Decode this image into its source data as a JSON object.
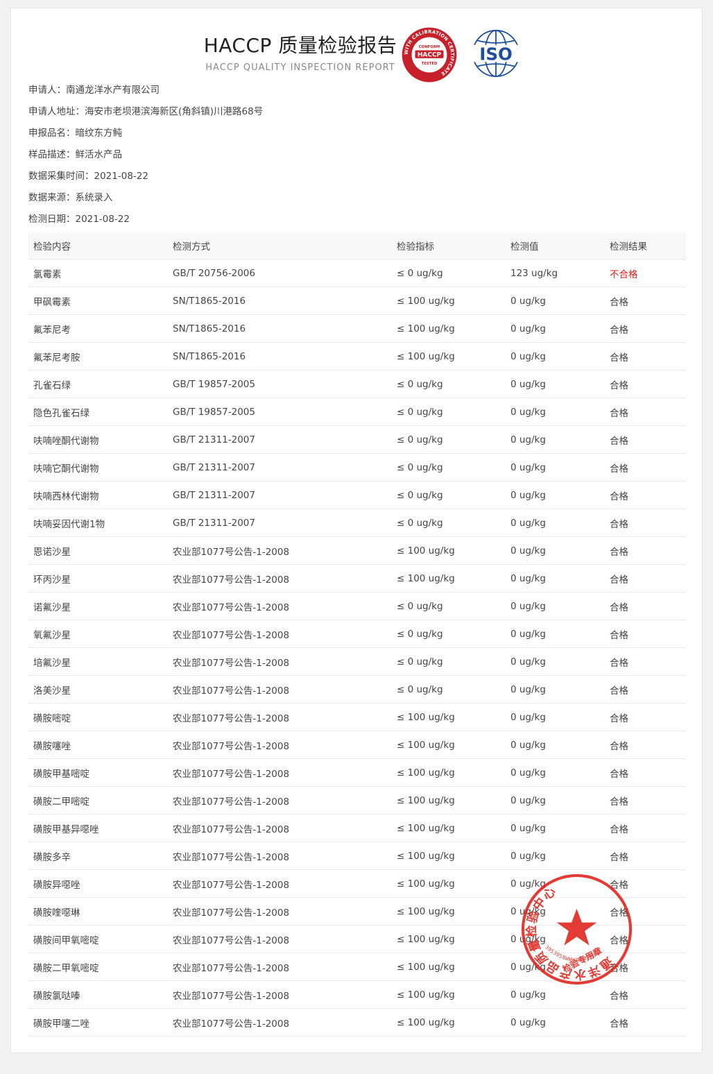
{
  "header": {
    "title": "HACCP 质量检验报告",
    "subtitle": "HACCP QUALITY INSPECTION REPORT"
  },
  "logos": {
    "haccp_ring_text": "WITH CALIBRATION CERTIFICATE",
    "haccp_top": "CONFORM",
    "haccp_center": "HACCP",
    "haccp_bottom": "TESTED",
    "iso_text": "ISO"
  },
  "info": [
    {
      "label": "申请人：",
      "value": "南通龙洋水产有限公司"
    },
    {
      "label": "申请人地址：",
      "value": "海安市老坝港滨海新区(角斜镇)川港路68号"
    },
    {
      "label": "申报品名：",
      "value": "暗纹东方鲀"
    },
    {
      "label": "样品描述：",
      "value": "鲜活水产品"
    },
    {
      "label": "数据采集时间：",
      "value": "2021-08-22"
    },
    {
      "label": "数据来源：",
      "value": "系统录入"
    },
    {
      "label": "检测日期：",
      "value": "2021-08-22"
    }
  ],
  "table": {
    "headers": [
      "检验内容",
      "检测方式",
      "检验指标",
      "检测值",
      "检测结果"
    ],
    "rows": [
      [
        "氯霉素",
        "GB/T 20756-2006",
        "≤ 0 ug/kg",
        "123 ug/kg",
        "不合格"
      ],
      [
        "甲砜霉素",
        "SN/T1865-2016",
        "≤ 100 ug/kg",
        "0 ug/kg",
        "合格"
      ],
      [
        "氟苯尼考",
        "SN/T1865-2016",
        "≤ 100 ug/kg",
        "0 ug/kg",
        "合格"
      ],
      [
        "氟苯尼考胺",
        "SN/T1865-2016",
        "≤ 100 ug/kg",
        "0 ug/kg",
        "合格"
      ],
      [
        "孔雀石绿",
        "GB/T 19857-2005",
        "≤ 0 ug/kg",
        "0 ug/kg",
        "合格"
      ],
      [
        "隐色孔雀石绿",
        "GB/T 19857-2005",
        "≤ 0 ug/kg",
        "0 ug/kg",
        "合格"
      ],
      [
        "呋喃唑酮代谢物",
        "GB/T 21311-2007",
        "≤ 0 ug/kg",
        "0 ug/kg",
        "合格"
      ],
      [
        "呋喃它酮代谢物",
        "GB/T 21311-2007",
        "≤ 0 ug/kg",
        "0 ug/kg",
        "合格"
      ],
      [
        "呋喃西林代谢物",
        "GB/T 21311-2007",
        "≤ 0 ug/kg",
        "0 ug/kg",
        "合格"
      ],
      [
        "呋喃妥因代谢1物",
        "GB/T 21311-2007",
        "≤ 0 ug/kg",
        "0 ug/kg",
        "合格"
      ],
      [
        "恩诺沙星",
        "农业部1077号公告-1-2008",
        "≤ 100 ug/kg",
        "0 ug/kg",
        "合格"
      ],
      [
        "环丙沙星",
        "农业部1077号公告-1-2008",
        "≤ 100 ug/kg",
        "0 ug/kg",
        "合格"
      ],
      [
        "诺氟沙星",
        "农业部1077号公告-1-2008",
        "≤ 0 ug/kg",
        "0 ug/kg",
        "合格"
      ],
      [
        "氧氟沙星",
        "农业部1077号公告-1-2008",
        "≤ 0 ug/kg",
        "0 ug/kg",
        "合格"
      ],
      [
        "培氟沙星",
        "农业部1077号公告-1-2008",
        "≤ 0 ug/kg",
        "0 ug/kg",
        "合格"
      ],
      [
        "洛美沙星",
        "农业部1077号公告-1-2008",
        "≤ 0 ug/kg",
        "0 ug/kg",
        "合格"
      ],
      [
        "磺胺嘧啶",
        "农业部1077号公告-1-2008",
        "≤ 100 ug/kg",
        "0 ug/kg",
        "合格"
      ],
      [
        "磺胺噻唑",
        "农业部1077号公告-1-2008",
        "≤ 100 ug/kg",
        "0 ug/kg",
        "合格"
      ],
      [
        "磺胺甲基嘧啶",
        "农业部1077号公告-1-2008",
        "≤ 100 ug/kg",
        "0 ug/kg",
        "合格"
      ],
      [
        "磺胺二甲嘧啶",
        "农业部1077号公告-1-2008",
        "≤ 100 ug/kg",
        "0 ug/kg",
        "合格"
      ],
      [
        "磺胺甲基异噁唑",
        "农业部1077号公告-1-2008",
        "≤ 100 ug/kg",
        "0 ug/kg",
        "合格"
      ],
      [
        "磺胺多辛",
        "农业部1077号公告-1-2008",
        "≤ 100 ug/kg",
        "0 ug/kg",
        "合格"
      ],
      [
        "磺胺异噁唑",
        "农业部1077号公告-1-2008",
        "≤ 100 ug/kg",
        "0 ug/kg",
        "合格"
      ],
      [
        "磺胺喹噁琳",
        "农业部1077号公告-1-2008",
        "≤ 100 ug/kg",
        "0 ug/kg",
        "合格"
      ],
      [
        "磺胺间甲氧嘧啶",
        "农业部1077号公告-1-2008",
        "≤ 100 ug/kg",
        "0 ug/kg",
        "合格"
      ],
      [
        "磺胺二甲氧嘧啶",
        "农业部1077号公告-1-2008",
        "≤ 100 ug/kg",
        "0 ug/kg",
        "合格"
      ],
      [
        "磺胺氯哒嗪",
        "农业部1077号公告-1-2008",
        "≤ 100 ug/kg",
        "0 ug/kg",
        "合格"
      ],
      [
        "磺胺甲噻二唑",
        "农业部1077号公告-1-2008",
        "≤ 100 ug/kg",
        "0 ug/kg",
        "合格"
      ]
    ],
    "fail_value": "不合格",
    "fail_color": "#e0201a"
  },
  "stamp": {
    "ring_text": "通洋水产品质量检验中心",
    "center_text": "检验专用章",
    "number": "3953958WWW393TEST",
    "color": "#e0201a"
  }
}
